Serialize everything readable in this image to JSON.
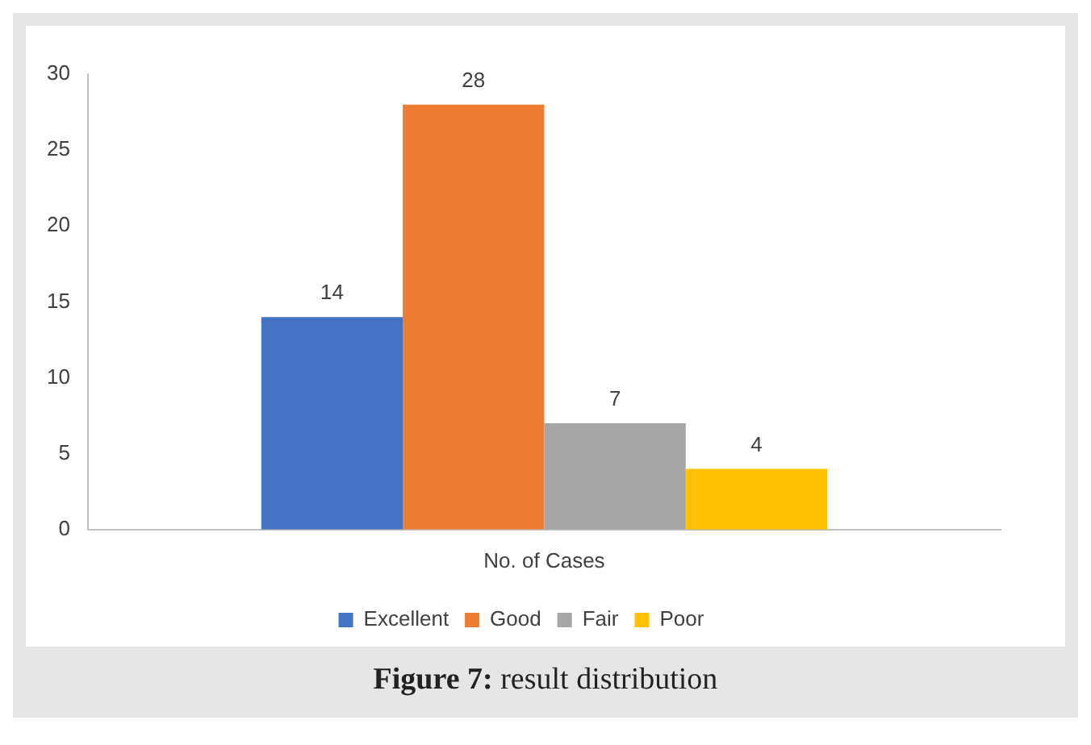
{
  "chart_data": {
    "type": "bar",
    "categories": [
      "No. of Cases"
    ],
    "series": [
      {
        "name": "Excellent",
        "color": "#4472c4",
        "values": [
          14
        ]
      },
      {
        "name": "Good",
        "color": "#ed7d31",
        "values": [
          28
        ]
      },
      {
        "name": "Fair",
        "color": "#a5a5a5",
        "values": [
          7
        ]
      },
      {
        "name": "Poor",
        "color": "#ffc000",
        "values": [
          4
        ]
      }
    ],
    "ylim": [
      0,
      30
    ],
    "yticks": [
      0,
      5,
      10,
      15,
      20,
      25,
      30
    ],
    "grid": false,
    "legend": "bottom",
    "data_labels": true,
    "annotations": [
      "Figure 7: result distribution"
    ]
  }
}
